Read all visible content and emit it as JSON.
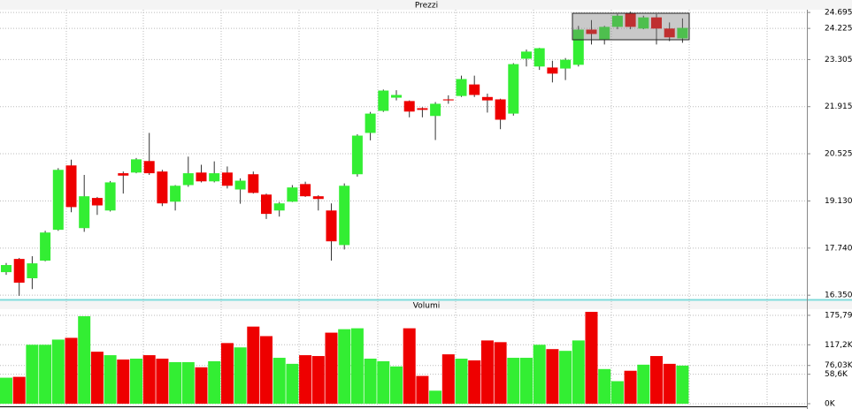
{
  "chart_data": [
    {
      "type": "candlestick",
      "title": "Prezzi",
      "open": [
        17.03,
        17.42,
        16.85,
        17.37,
        18.28,
        20.18,
        18.33,
        19.22,
        18.85,
        19.95,
        19.97,
        20.31,
        20.0,
        19.11,
        19.6,
        19.97,
        19.71,
        19.97,
        19.47,
        19.92,
        19.32,
        18.85,
        19.11,
        19.63,
        19.27,
        18.85,
        17.83,
        19.92,
        21.14,
        21.79,
        22.18,
        22.08,
        21.87,
        21.64,
        22.13,
        22.23,
        22.57,
        22.2,
        22.13,
        21.71,
        23.33,
        23.1,
        23.07,
        23.04,
        23.15,
        24.19,
        23.88,
        24.27,
        24.68,
        24.22,
        24.55,
        24.22,
        23.93
      ],
      "high": [
        17.3,
        17.45,
        17.5,
        18.25,
        20.1,
        20.35,
        19.9,
        19.25,
        19.72,
        20.0,
        20.4,
        21.14,
        20.05,
        19.6,
        20.44,
        20.2,
        20.3,
        20.15,
        19.8,
        20.0,
        19.35,
        19.1,
        19.6,
        19.7,
        19.3,
        19.06,
        19.65,
        21.1,
        21.76,
        22.42,
        22.4,
        22.1,
        21.9,
        22.05,
        22.25,
        22.83,
        22.83,
        22.3,
        22.15,
        23.2,
        23.6,
        23.65,
        23.27,
        23.35,
        24.3,
        24.47,
        24.3,
        24.65,
        24.72,
        24.6,
        24.65,
        24.4,
        24.52
      ],
      "low": [
        16.95,
        16.33,
        16.53,
        17.35,
        18.25,
        18.8,
        18.22,
        18.72,
        18.82,
        19.35,
        19.95,
        19.9,
        18.98,
        18.85,
        19.55,
        19.68,
        19.68,
        19.5,
        19.05,
        19.35,
        18.6,
        18.67,
        19.1,
        19.25,
        18.85,
        17.37,
        17.7,
        19.85,
        20.92,
        21.76,
        22.1,
        21.6,
        21.6,
        20.93,
        22.0,
        22.2,
        22.2,
        21.74,
        21.25,
        21.65,
        23.1,
        23.0,
        22.63,
        22.7,
        23.1,
        23.75,
        23.75,
        24.2,
        24.2,
        24.2,
        23.75,
        23.85,
        23.8
      ],
      "close": [
        17.24,
        16.72,
        17.29,
        18.2,
        20.05,
        18.95,
        19.27,
        19.0,
        19.68,
        19.88,
        20.36,
        19.95,
        19.06,
        19.58,
        19.95,
        19.71,
        19.95,
        19.58,
        19.73,
        19.37,
        18.75,
        19.06,
        19.53,
        19.27,
        19.19,
        17.94,
        19.58,
        21.06,
        21.71,
        22.39,
        22.26,
        21.77,
        21.82,
        22.0,
        22.1,
        22.73,
        22.26,
        22.1,
        21.53,
        23.17,
        23.54,
        23.64,
        22.89,
        23.3,
        24.19,
        24.06,
        24.27,
        24.6,
        24.27,
        24.55,
        24.22,
        23.96,
        24.24
      ],
      "up_color": "#33ee33",
      "down_color": "#ee0000",
      "ylim": [
        16.25,
        24.75
      ],
      "yticks": [
        {
          "value": 16.35,
          "label": "16.350"
        },
        {
          "value": 17.74,
          "label": "17.740"
        },
        {
          "value": 19.13,
          "label": "19.130"
        },
        20.525,
        21.915,
        23.305,
        24.225,
        24.695
      ],
      "grid": true
    },
    {
      "type": "bar",
      "title": "Volumi",
      "values": [
        51700,
        53400,
        117200,
        117200,
        127500,
        131000,
        174000,
        103400,
        96500,
        87900,
        89600,
        96500,
        89600,
        82700,
        82700,
        72400,
        84500,
        120600,
        112000,
        153400,
        134400,
        91300,
        79300,
        96500,
        94800,
        141300,
        148200,
        150000,
        89600,
        84500,
        74100,
        150000,
        55200,
        25900,
        98200,
        89600,
        86200,
        125800,
        122400,
        91300,
        91300,
        117200,
        108600,
        105100,
        125800,
        182700,
        68900,
        44800,
        65500,
        77600,
        94800,
        79300,
        75800
      ],
      "ylim": [
        0,
        188000
      ],
      "yticks": [
        {
          "value": 0,
          "label": "0K"
        },
        {
          "value": 58600,
          "label": "58,6K"
        },
        {
          "value": 76030,
          "label": "76,03K"
        },
        {
          "value": 117200,
          "label": "117,2K"
        },
        {
          "value": 175790,
          "label": "175,79K"
        }
      ],
      "grid": true
    }
  ]
}
